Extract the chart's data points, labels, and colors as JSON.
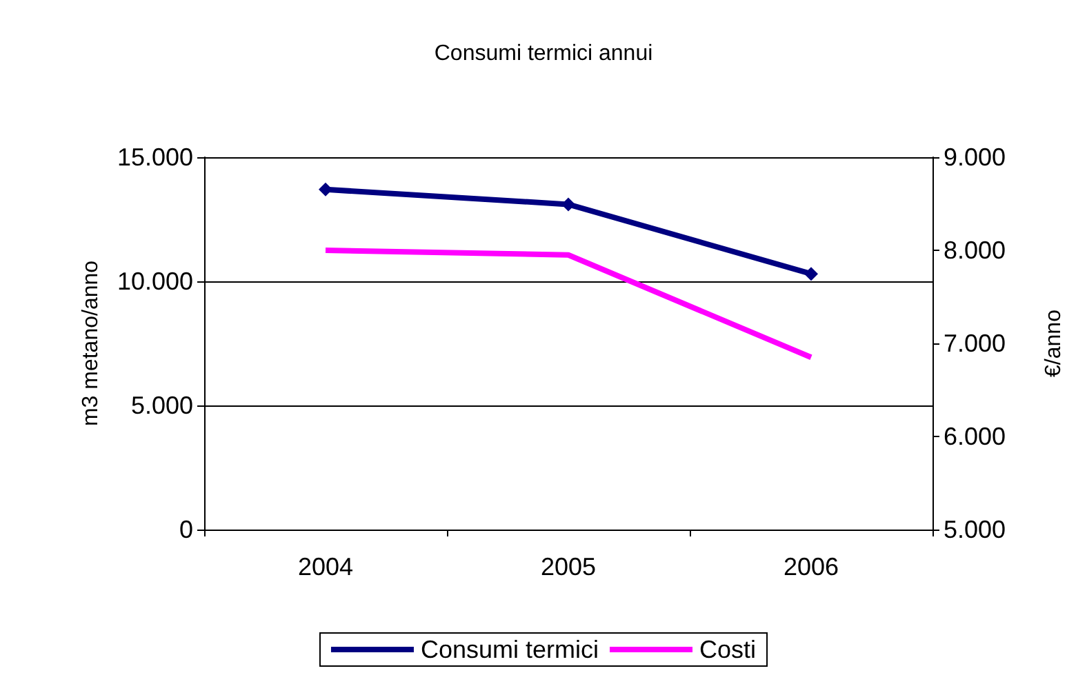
{
  "chart_data": {
    "type": "line",
    "title": "Consumi termici annui",
    "ylabel": "m3 metano/anno",
    "y2label": "€/anno",
    "categories": [
      "2004",
      "2005",
      "2006"
    ],
    "series": [
      {
        "name": "Consumi termici",
        "color": "#000080",
        "values": [
          13700,
          13100,
          10300
        ],
        "marker": "diamond"
      },
      {
        "name": "Costi",
        "color": "#ff00ff",
        "values": [
          8000,
          7950,
          6850
        ],
        "axis": "y2",
        "marker": "none"
      }
    ],
    "ylim": [
      0,
      15000
    ],
    "yticks": [
      0,
      {
        "value": 5000,
        "label": "5.000"
      },
      {
        "value": 10000,
        "label": "10.000"
      },
      {
        "value": 15000,
        "label": "15.000"
      }
    ],
    "y2lim": [
      5000,
      9000
    ],
    "y2ticks": [
      {
        "value": 5000,
        "label": "5.000"
      },
      {
        "value": 6000,
        "label": "6.000"
      },
      {
        "value": 7000,
        "label": "7.000"
      },
      {
        "value": 8000,
        "label": "8.000"
      },
      {
        "value": 9000,
        "label": "9.000"
      }
    ],
    "grid": "y",
    "legend": "bottom",
    "line_style": "solid"
  }
}
